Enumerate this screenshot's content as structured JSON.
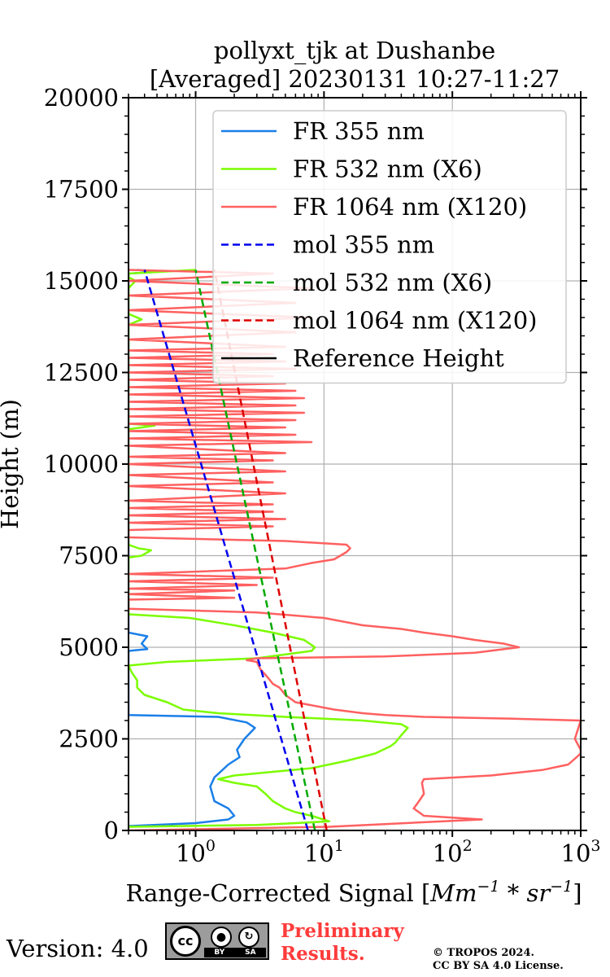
{
  "chart_data": {
    "type": "line",
    "title_line1": "pollyxt_tjk at Dushanbe",
    "title_line2": "[Averaged] 20230131 10:27-11:27",
    "xlabel": "Range-Corrected Signal [",
    "xlabel_units": "Mm",
    "xlabel_exp1": "−1",
    "xlabel_mul": " * sr",
    "xlabel_exp2": "−1",
    "xlabel_close": "]",
    "ylabel": "Height (m)",
    "xscale": "log",
    "xlim": [
      0.3,
      1000
    ],
    "ylim": [
      0,
      20000
    ],
    "x_ticks": [
      {
        "value": 1,
        "base": "10",
        "exp": "0"
      },
      {
        "value": 10,
        "base": "10",
        "exp": "1"
      },
      {
        "value": 100,
        "base": "10",
        "exp": "2"
      },
      {
        "value": 1000,
        "base": "10",
        "exp": "3"
      }
    ],
    "y_ticks": [
      {
        "value": 0,
        "label": "0"
      },
      {
        "value": 2500,
        "label": "2500"
      },
      {
        "value": 5000,
        "label": "5000"
      },
      {
        "value": 7500,
        "label": "7500"
      },
      {
        "value": 10000,
        "label": "10000"
      },
      {
        "value": 12500,
        "label": "12500"
      },
      {
        "value": 15000,
        "label": "15000"
      },
      {
        "value": 17500,
        "label": "17500"
      },
      {
        "value": 20000,
        "label": "20000"
      }
    ],
    "grid": true,
    "legend_position": "top-right",
    "series": [
      {
        "name": "FR 355 nm",
        "color": "#1a7fe8",
        "style": "solid",
        "points": [
          [
            0.3,
            120
          ],
          [
            1.0,
            200
          ],
          [
            1.8,
            300
          ],
          [
            2.0,
            400
          ],
          [
            1.8,
            600
          ],
          [
            1.4,
            800
          ],
          [
            1.3,
            1200
          ],
          [
            1.4,
            1450
          ],
          [
            1.8,
            1800
          ],
          [
            2.2,
            2000
          ],
          [
            2.1,
            2200
          ],
          [
            2.4,
            2500
          ],
          [
            2.9,
            2800
          ],
          [
            2.5,
            2950
          ],
          [
            1.5,
            3100
          ],
          [
            0.3,
            3150
          ],
          [
            0.3,
            4900
          ],
          [
            0.42,
            4950
          ],
          [
            0.38,
            5100
          ],
          [
            0.42,
            5300
          ],
          [
            0.3,
            5400
          ],
          [
            0.3,
            15200
          ],
          [
            0.52,
            15250
          ],
          [
            0.35,
            15300
          ]
        ]
      },
      {
        "name": "FR 532 nm (X6)",
        "color": "#7cfc00",
        "style": "solid",
        "points": [
          [
            0.3,
            100
          ],
          [
            3,
            150
          ],
          [
            6,
            200
          ],
          [
            11,
            250
          ],
          [
            8,
            400
          ],
          [
            6,
            500
          ],
          [
            5,
            600
          ],
          [
            4,
            800
          ],
          [
            3.5,
            1000
          ],
          [
            3,
            1200
          ],
          [
            2,
            1300
          ],
          [
            1.5,
            1400
          ],
          [
            2,
            1500
          ],
          [
            4,
            1600
          ],
          [
            8,
            1700
          ],
          [
            15,
            1900
          ],
          [
            25,
            2100
          ],
          [
            33,
            2300
          ],
          [
            36,
            2400
          ],
          [
            40,
            2600
          ],
          [
            45,
            2800
          ],
          [
            40,
            2900
          ],
          [
            20,
            3000
          ],
          [
            5,
            3100
          ],
          [
            1.5,
            3200
          ],
          [
            0.8,
            3300
          ],
          [
            0.6,
            3500
          ],
          [
            0.4,
            3700
          ],
          [
            0.35,
            3900
          ],
          [
            0.35,
            4100
          ],
          [
            0.32,
            4300
          ],
          [
            0.3,
            4500
          ],
          [
            0.6,
            4600
          ],
          [
            3,
            4700
          ],
          [
            8,
            4900
          ],
          [
            8.5,
            5000
          ],
          [
            7,
            5200
          ],
          [
            4,
            5400
          ],
          [
            2,
            5600
          ],
          [
            0.9,
            5800
          ],
          [
            0.3,
            5900
          ],
          [
            0.3,
            7450
          ],
          [
            0.38,
            7500
          ],
          [
            0.45,
            7650
          ],
          [
            0.36,
            7700
          ],
          [
            0.3,
            7800
          ],
          [
            0.3,
            10950
          ],
          [
            0.48,
            11050
          ],
          [
            0.3,
            11100
          ],
          [
            0.3,
            13800
          ],
          [
            0.38,
            13950
          ],
          [
            0.3,
            14100
          ],
          [
            0.3,
            14800
          ],
          [
            0.34,
            15000
          ],
          [
            0.3,
            15100
          ],
          [
            0.3,
            15200
          ],
          [
            1.0,
            15300
          ]
        ]
      },
      {
        "name": "FR 1064 nm (X120)",
        "color": "#ff6060",
        "style": "solid",
        "points": [
          [
            0.3,
            0
          ],
          [
            11,
            100
          ],
          [
            170,
            300
          ],
          [
            100,
            350
          ],
          [
            60,
            400
          ],
          [
            50,
            600
          ],
          [
            55,
            800
          ],
          [
            60,
            1000
          ],
          [
            58,
            1300
          ],
          [
            60,
            1400
          ],
          [
            200,
            1500
          ],
          [
            500,
            1650
          ],
          [
            800,
            1800
          ],
          [
            1000,
            2100
          ],
          [
            1000,
            2200
          ],
          [
            900,
            2500
          ],
          [
            1000,
            3000
          ],
          [
            300,
            3050
          ],
          [
            60,
            3100
          ],
          [
            30,
            3150
          ],
          [
            20,
            3200
          ],
          [
            12,
            3300
          ],
          [
            6,
            3500
          ],
          [
            5,
            3700
          ],
          [
            4.5,
            3900
          ],
          [
            4.0,
            4000
          ],
          [
            3.8,
            4100
          ],
          [
            3.5,
            4250
          ],
          [
            3.2,
            4400
          ],
          [
            3.0,
            4600
          ],
          [
            2.5,
            4650
          ],
          [
            3,
            4700
          ],
          [
            30,
            4750
          ],
          [
            150,
            4850
          ],
          [
            330,
            5000
          ],
          [
            250,
            5100
          ],
          [
            150,
            5200
          ],
          [
            100,
            5300
          ],
          [
            60,
            5400
          ],
          [
            40,
            5500
          ],
          [
            20,
            5600
          ],
          [
            10,
            5800
          ],
          [
            3,
            5950
          ],
          [
            1.0,
            6000
          ],
          [
            0.3,
            6050
          ],
          [
            0.3,
            6300
          ],
          [
            2,
            6350
          ],
          [
            0.3,
            6450
          ],
          [
            2,
            6550
          ],
          [
            0.3,
            6600
          ],
          [
            3,
            6700
          ],
          [
            0.3,
            6800
          ],
          [
            4,
            6900
          ],
          [
            0.3,
            7000
          ],
          [
            5,
            7150
          ],
          [
            8,
            7300
          ],
          [
            12,
            7400
          ],
          [
            15,
            7600
          ],
          [
            16,
            7700
          ],
          [
            15,
            7800
          ],
          [
            5,
            7900
          ],
          [
            0.3,
            8000
          ],
          [
            0.3,
            8200
          ],
          [
            4,
            8300
          ],
          [
            0.3,
            8400
          ],
          [
            5,
            8500
          ],
          [
            0.3,
            8600
          ],
          [
            4,
            8700
          ],
          [
            0.3,
            8800
          ],
          [
            4,
            8900
          ],
          [
            0.3,
            9000
          ],
          [
            5,
            9200
          ],
          [
            0.3,
            9400
          ],
          [
            4,
            9500
          ],
          [
            0.3,
            9700
          ],
          [
            5,
            9800
          ],
          [
            0.3,
            10000
          ],
          [
            4,
            10100
          ],
          [
            0.3,
            10200
          ],
          [
            5,
            10300
          ],
          [
            0.3,
            10500
          ],
          [
            8,
            10600
          ],
          [
            0.3,
            10700
          ],
          [
            6,
            10800
          ],
          [
            0.3,
            10900
          ],
          [
            5,
            11000
          ],
          [
            0.3,
            11100
          ],
          [
            6,
            11200
          ],
          [
            0.3,
            11300
          ],
          [
            7,
            11400
          ],
          [
            0.3,
            11500
          ],
          [
            6,
            11600
          ],
          [
            0.3,
            11700
          ],
          [
            7,
            11800
          ],
          [
            0.3,
            11900
          ],
          [
            6,
            12000
          ],
          [
            0.3,
            12100
          ],
          [
            5,
            12200
          ],
          [
            0.3,
            12300
          ],
          [
            4,
            12400
          ],
          [
            0.3,
            12500
          ],
          [
            6,
            12600
          ],
          [
            0.3,
            12700
          ],
          [
            5,
            12800
          ],
          [
            0.3,
            12900
          ],
          [
            4,
            13000
          ],
          [
            0.3,
            13100
          ],
          [
            5,
            13200
          ],
          [
            0.3,
            13400
          ],
          [
            6,
            13600
          ],
          [
            0.3,
            13800
          ],
          [
            8,
            14000
          ],
          [
            0.3,
            14200
          ],
          [
            6,
            14400
          ],
          [
            0.3,
            14600
          ],
          [
            8,
            14800
          ],
          [
            0.3,
            15000
          ],
          [
            4,
            15200
          ],
          [
            0.3,
            15300
          ]
        ]
      },
      {
        "name": "mol 355 nm",
        "color": "#0000ee",
        "style": "dashed",
        "points": [
          [
            7.5,
            0
          ],
          [
            0.4,
            15300
          ]
        ]
      },
      {
        "name": "mol 532 nm (X6)",
        "color": "#00aa00",
        "style": "dashed",
        "points": [
          [
            8.5,
            0
          ],
          [
            1.0,
            15300
          ]
        ]
      },
      {
        "name": "mol 1064 nm (X120)",
        "color": "#dd0000",
        "style": "dashed",
        "points": [
          [
            10.5,
            0
          ],
          [
            1.4,
            15300
          ]
        ]
      },
      {
        "name": "Reference Height",
        "color": "#000000",
        "style": "solid",
        "points": []
      }
    ]
  },
  "footer": {
    "version": "Version: 4.0",
    "cc_logo": "cc",
    "cc_by": "BY",
    "cc_sa": "SA",
    "preliminary": [
      "Preliminary",
      "Results."
    ],
    "copyright": [
      "© TROPOS 2024.",
      "CC BY SA 4.0 License."
    ]
  }
}
